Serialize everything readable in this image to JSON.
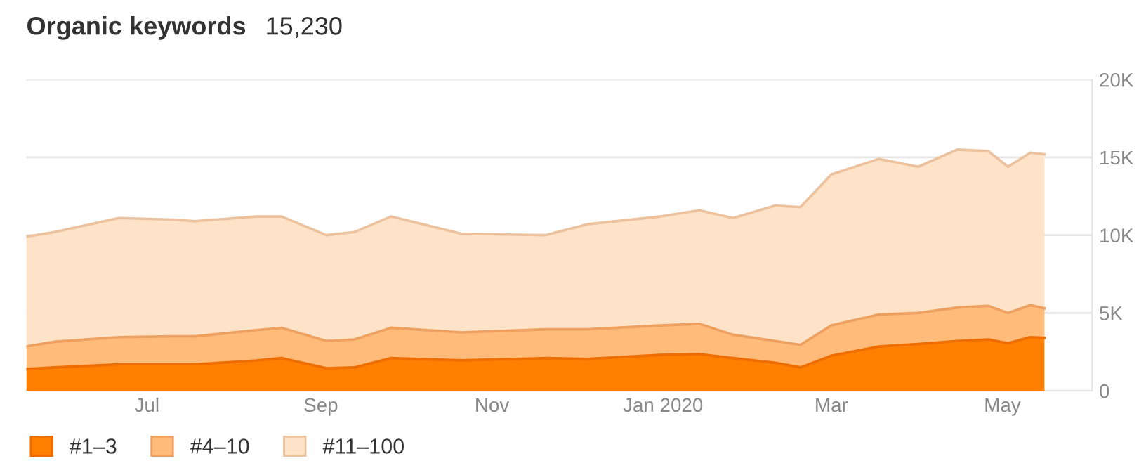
{
  "chart_data": {
    "type": "area",
    "stacked": true,
    "title": "Organic keywords",
    "subtitle": "15,230",
    "x": [
      "2019-05-19",
      "2019-05-29",
      "2019-06-21",
      "2019-07-10",
      "2019-07-18",
      "2019-08-09",
      "2019-08-18",
      "2019-09-03",
      "2019-09-13",
      "2019-09-26",
      "2019-10-21",
      "2019-11-20",
      "2019-12-05",
      "2019-12-31",
      "2020-01-14",
      "2020-01-26",
      "2020-02-10",
      "2020-02-19",
      "2020-03-01",
      "2020-03-18",
      "2020-04-01",
      "2020-04-15",
      "2020-04-26",
      "2020-05-03",
      "2020-05-11",
      "2020-05-16"
    ],
    "series": [
      {
        "name": "#1–3",
        "color": "#ff7f00",
        "values": [
          1400,
          1500,
          1700,
          1700,
          1700,
          1950,
          2100,
          1450,
          1500,
          2100,
          1950,
          2100,
          2050,
          2300,
          2350,
          2100,
          1800,
          1500,
          2250,
          2850,
          3000,
          3200,
          3300,
          3050,
          3450,
          3400
        ]
      },
      {
        "name": "#4–10",
        "color": "#ffbb7a",
        "values": [
          1450,
          1650,
          1750,
          1800,
          1800,
          1950,
          1950,
          1750,
          1800,
          1950,
          1800,
          1850,
          1900,
          1900,
          1950,
          1500,
          1400,
          1450,
          1950,
          2050,
          2000,
          2150,
          2150,
          1950,
          2050,
          1900
        ]
      },
      {
        "name": "#11–100",
        "color": "#fee3c8",
        "values": [
          7050,
          7050,
          7650,
          7500,
          7400,
          7300,
          7150,
          6800,
          6900,
          7150,
          6350,
          6050,
          6750,
          7000,
          7300,
          7500,
          8700,
          8850,
          9700,
          10000,
          9400,
          10150,
          9950,
          9400,
          9800,
          9900
        ]
      }
    ],
    "xlim": [
      "2019-05-19",
      "2020-06-02"
    ],
    "xticks": [
      {
        "value": "2019-07-01",
        "label": "Jul"
      },
      {
        "value": "2019-09-01",
        "label": "Sep"
      },
      {
        "value": "2019-11-01",
        "label": "Nov"
      },
      {
        "value": "2020-01-01",
        "label": "Jan 2020"
      },
      {
        "value": "2020-03-01",
        "label": "Mar"
      },
      {
        "value": "2020-05-01",
        "label": "May"
      }
    ],
    "ylim": [
      0,
      20000
    ],
    "yticks": [
      {
        "value": 0,
        "label": "0"
      },
      {
        "value": 5000,
        "label": "5K"
      },
      {
        "value": 10000,
        "label": "10K"
      },
      {
        "value": 15000,
        "label": "15K"
      },
      {
        "value": 20000,
        "label": "20K"
      }
    ],
    "grid": "y",
    "legend": "bottom left"
  }
}
